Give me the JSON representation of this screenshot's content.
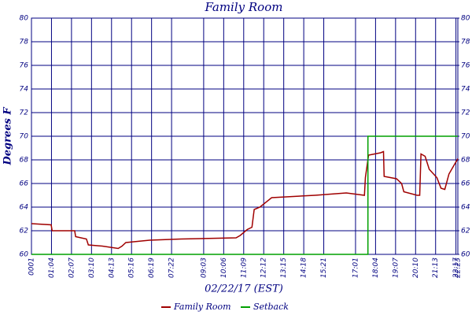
{
  "chart_data": {
    "type": "line",
    "title": "Family Room",
    "y_label": "Degrees F",
    "x_label": "02/22/17 (EST)",
    "ylim": [
      60,
      80
    ],
    "yticks": [
      60,
      62,
      64,
      66,
      68,
      70,
      72,
      74,
      76,
      78,
      80
    ],
    "y2lim": [
      60,
      80
    ],
    "y2ticks": [
      60,
      62,
      64,
      66,
      68,
      70,
      72,
      74,
      76,
      78,
      80
    ],
    "xlim": [
      1,
      1343
    ],
    "xticks": [
      {
        "value": 1,
        "label": "0001"
      },
      {
        "value": 64,
        "label": "01:04"
      },
      {
        "value": 127,
        "label": "02:07"
      },
      {
        "value": 190,
        "label": "03:10"
      },
      {
        "value": 253,
        "label": "04:13"
      },
      {
        "value": 316,
        "label": "05:16"
      },
      {
        "value": 379,
        "label": "06:19"
      },
      {
        "value": 442,
        "label": "07:22"
      },
      {
        "value": 543,
        "label": "09:03"
      },
      {
        "value": 606,
        "label": "10:06"
      },
      {
        "value": 669,
        "label": "11:09"
      },
      {
        "value": 732,
        "label": "12:12"
      },
      {
        "value": 795,
        "label": "13:15"
      },
      {
        "value": 858,
        "label": "14:18"
      },
      {
        "value": 921,
        "label": "15:21"
      },
      {
        "value": 1021,
        "label": "17:01"
      },
      {
        "value": 1084,
        "label": "18:04"
      },
      {
        "value": 1147,
        "label": "19:07"
      },
      {
        "value": 1210,
        "label": "20:10"
      },
      {
        "value": 1273,
        "label": "21:13"
      },
      {
        "value": 1337,
        "label": "22:17"
      },
      {
        "value": 1343,
        "label": "22:23"
      }
    ],
    "grid": true,
    "series": [
      {
        "name": "Family Room",
        "color": "#a00000",
        "x": [
          1,
          63,
          66,
          137,
          140,
          174,
          180,
          224,
          274,
          286,
          298,
          373,
          472,
          645,
          658,
          680,
          695,
          702,
          720,
          757,
          893,
          992,
          1049,
          1052,
          1062,
          1100,
          1109,
          1111,
          1150,
          1166,
          1173,
          1215,
          1223,
          1227,
          1240,
          1253,
          1277,
          1290,
          1302,
          1315,
          1330,
          1343
        ],
        "values": [
          62.6,
          62.5,
          62.0,
          62.0,
          61.5,
          61.3,
          60.8,
          60.7,
          60.5,
          60.7,
          61.0,
          61.2,
          61.3,
          61.4,
          61.6,
          62.1,
          62.3,
          63.8,
          64.0,
          64.8,
          65.0,
          65.2,
          65.0,
          66.5,
          68.4,
          68.6,
          68.7,
          66.6,
          66.4,
          66.0,
          65.3,
          65.0,
          65.0,
          68.5,
          68.3,
          67.2,
          66.5,
          65.6,
          65.5,
          66.8,
          67.5,
          68.1
        ]
      },
      {
        "name": "Setback",
        "color": "#00a000",
        "x": [
          1,
          1060,
          1060,
          1343
        ],
        "values": [
          60,
          60,
          70,
          70
        ]
      }
    ]
  }
}
